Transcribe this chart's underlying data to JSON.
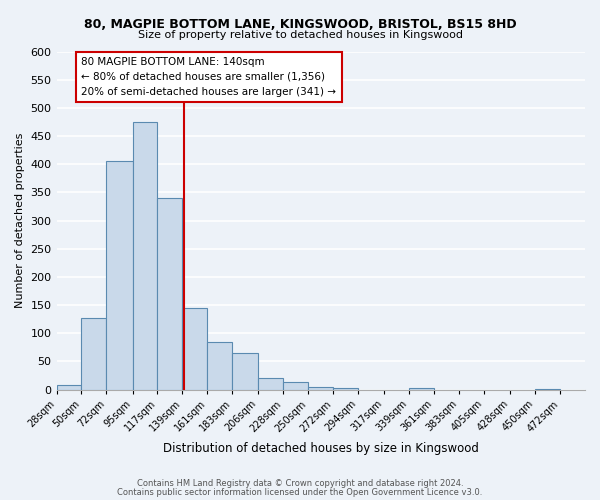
{
  "title": "80, MAGPIE BOTTOM LANE, KINGSWOOD, BRISTOL, BS15 8HD",
  "subtitle": "Size of property relative to detached houses in Kingswood",
  "xlabel": "Distribution of detached houses by size in Kingswood",
  "ylabel": "Number of detached properties",
  "bin_labels": [
    "28sqm",
    "50sqm",
    "72sqm",
    "95sqm",
    "117sqm",
    "139sqm",
    "161sqm",
    "183sqm",
    "206sqm",
    "228sqm",
    "250sqm",
    "272sqm",
    "294sqm",
    "317sqm",
    "339sqm",
    "361sqm",
    "383sqm",
    "405sqm",
    "428sqm",
    "450sqm",
    "472sqm"
  ],
  "bin_edges": [
    28,
    50,
    72,
    95,
    117,
    139,
    161,
    183,
    206,
    228,
    250,
    272,
    294,
    317,
    339,
    361,
    383,
    405,
    428,
    450,
    472,
    494
  ],
  "bar_values": [
    8,
    127,
    405,
    475,
    340,
    145,
    85,
    65,
    20,
    13,
    5,
    3,
    0,
    0,
    3,
    0,
    0,
    0,
    0,
    2,
    0
  ],
  "bar_color": "#c9d9ea",
  "bar_edge_color": "#5a8ab0",
  "property_size": 140,
  "vline_color": "#cc0000",
  "annotation_line1": "80 MAGPIE BOTTOM LANE: 140sqm",
  "annotation_line2": "← 80% of detached houses are smaller (1,356)",
  "annotation_line3": "20% of semi-detached houses are larger (341) →",
  "annotation_box_color": "#ffffff",
  "annotation_box_edgecolor": "#cc0000",
  "ylim": [
    0,
    600
  ],
  "yticks": [
    0,
    50,
    100,
    150,
    200,
    250,
    300,
    350,
    400,
    450,
    500,
    550,
    600
  ],
  "footer1": "Contains HM Land Registry data © Crown copyright and database right 2024.",
  "footer2": "Contains public sector information licensed under the Open Government Licence v3.0.",
  "bg_color": "#edf2f8",
  "grid_color": "#ffffff"
}
